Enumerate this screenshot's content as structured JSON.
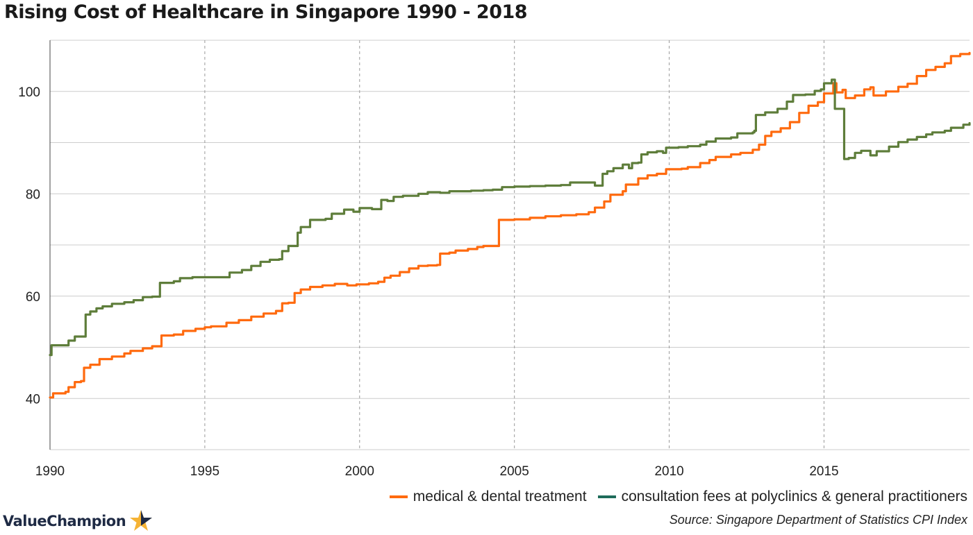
{
  "title": "Rising Cost of Healthcare in Singapore 1990 - 2018",
  "source": "Source: Singapore Department of Statistics CPI Index",
  "logo": {
    "text": "ValueChampion",
    "icon": "star-icon",
    "colors": [
      "#1e2a44",
      "#f5b335"
    ]
  },
  "colors": {
    "medical": "#ff6a0e",
    "consultation": "#5e7d3a",
    "legend_consultation": "#1e6b5a",
    "grid": "#cccccc"
  },
  "chart_data": {
    "type": "line",
    "title": "Rising Cost of Healthcare in Singapore 1990 - 2018",
    "xlabel": "",
    "ylabel": "",
    "xlim": [
      1990,
      2019.7
    ],
    "ylim": [
      30,
      110
    ],
    "x_ticks": [
      1990,
      1995,
      2000,
      2005,
      2010,
      2015
    ],
    "y_ticks": [
      40,
      60,
      80,
      100
    ],
    "grid": {
      "horizontal": true,
      "vertical_dashed_at_ticks": true
    },
    "legend_position": "bottom-right",
    "series": [
      {
        "name": "medical & dental treatment",
        "color": "#ff6a0e",
        "step": true,
        "points": [
          [
            1990.0,
            40.2
          ],
          [
            1990.1,
            41.0
          ],
          [
            1990.5,
            41.3
          ],
          [
            1990.6,
            42.2
          ],
          [
            1990.8,
            43.2
          ],
          [
            1991.0,
            43.4
          ],
          [
            1991.1,
            46.0
          ],
          [
            1991.3,
            46.6
          ],
          [
            1991.6,
            47.7
          ],
          [
            1992.0,
            48.2
          ],
          [
            1992.4,
            48.8
          ],
          [
            1992.6,
            49.3
          ],
          [
            1993.0,
            49.8
          ],
          [
            1993.3,
            50.2
          ],
          [
            1993.6,
            52.3
          ],
          [
            1994.0,
            52.5
          ],
          [
            1994.3,
            53.2
          ],
          [
            1994.7,
            53.6
          ],
          [
            1995.0,
            53.9
          ],
          [
            1995.2,
            54.1
          ],
          [
            1995.7,
            54.8
          ],
          [
            1996.1,
            55.3
          ],
          [
            1996.5,
            56.0
          ],
          [
            1996.9,
            56.6
          ],
          [
            1997.3,
            57.1
          ],
          [
            1997.5,
            58.6
          ],
          [
            1997.7,
            58.7
          ],
          [
            1997.9,
            60.6
          ],
          [
            1998.1,
            61.3
          ],
          [
            1998.4,
            61.8
          ],
          [
            1998.8,
            62.1
          ],
          [
            1999.2,
            62.4
          ],
          [
            1999.6,
            62.1
          ],
          [
            1999.9,
            62.3
          ],
          [
            2000.3,
            62.5
          ],
          [
            2000.6,
            62.8
          ],
          [
            2000.8,
            63.6
          ],
          [
            2001.0,
            64.0
          ],
          [
            2001.3,
            64.7
          ],
          [
            2001.6,
            65.4
          ],
          [
            2001.9,
            65.9
          ],
          [
            2002.2,
            66.0
          ],
          [
            2002.5,
            66.1
          ],
          [
            2002.6,
            68.3
          ],
          [
            2002.9,
            68.5
          ],
          [
            2003.1,
            68.9
          ],
          [
            2003.5,
            69.2
          ],
          [
            2003.8,
            69.6
          ],
          [
            2004.0,
            69.8
          ],
          [
            2004.4,
            69.8
          ],
          [
            2004.5,
            74.9
          ],
          [
            2005.0,
            75.0
          ],
          [
            2005.5,
            75.3
          ],
          [
            2006.0,
            75.6
          ],
          [
            2006.5,
            75.8
          ],
          [
            2007.0,
            76.0
          ],
          [
            2007.4,
            76.4
          ],
          [
            2007.6,
            77.3
          ],
          [
            2007.9,
            78.5
          ],
          [
            2008.1,
            79.8
          ],
          [
            2008.3,
            79.8
          ],
          [
            2008.5,
            80.5
          ],
          [
            2008.6,
            81.8
          ],
          [
            2009.0,
            83.0
          ],
          [
            2009.3,
            83.6
          ],
          [
            2009.6,
            83.9
          ],
          [
            2009.9,
            84.8
          ],
          [
            2010.4,
            84.9
          ],
          [
            2010.6,
            85.2
          ],
          [
            2011.0,
            86.0
          ],
          [
            2011.3,
            86.6
          ],
          [
            2011.5,
            87.2
          ],
          [
            2012.0,
            87.7
          ],
          [
            2012.3,
            88.0
          ],
          [
            2012.7,
            88.6
          ],
          [
            2012.9,
            89.6
          ],
          [
            2013.1,
            91.3
          ],
          [
            2013.3,
            92.1
          ],
          [
            2013.6,
            92.8
          ],
          [
            2013.9,
            94.0
          ],
          [
            2014.2,
            95.8
          ],
          [
            2014.5,
            97.2
          ],
          [
            2014.8,
            97.9
          ],
          [
            2015.0,
            99.6
          ],
          [
            2015.3,
            101.6
          ],
          [
            2015.4,
            99.8
          ],
          [
            2015.6,
            100.3
          ],
          [
            2015.7,
            98.7
          ],
          [
            2016.0,
            99.2
          ],
          [
            2016.3,
            100.4
          ],
          [
            2016.5,
            100.8
          ],
          [
            2016.6,
            99.2
          ],
          [
            2017.0,
            100.0
          ],
          [
            2017.4,
            100.9
          ],
          [
            2017.7,
            101.5
          ],
          [
            2018.0,
            103.0
          ],
          [
            2018.3,
            104.2
          ],
          [
            2018.6,
            104.8
          ],
          [
            2018.9,
            105.5
          ],
          [
            2019.1,
            106.9
          ],
          [
            2019.4,
            107.3
          ],
          [
            2019.7,
            107.5
          ]
        ]
      },
      {
        "name": "consultation fees at polyclinics & general practitioners",
        "color": "#5e7d3a",
        "step": true,
        "points": [
          [
            1990.0,
            48.5
          ],
          [
            1990.05,
            50.4
          ],
          [
            1990.5,
            50.4
          ],
          [
            1990.6,
            51.3
          ],
          [
            1990.8,
            52.1
          ],
          [
            1991.1,
            52.1
          ],
          [
            1991.15,
            56.4
          ],
          [
            1991.3,
            57.0
          ],
          [
            1991.5,
            57.6
          ],
          [
            1991.7,
            58.0
          ],
          [
            1992.0,
            58.5
          ],
          [
            1992.4,
            58.8
          ],
          [
            1992.7,
            59.2
          ],
          [
            1993.0,
            59.8
          ],
          [
            1993.3,
            59.9
          ],
          [
            1993.55,
            62.6
          ],
          [
            1994.0,
            62.9
          ],
          [
            1994.2,
            63.5
          ],
          [
            1994.6,
            63.7
          ],
          [
            1995.7,
            63.7
          ],
          [
            1995.8,
            64.6
          ],
          [
            1996.2,
            65.1
          ],
          [
            1996.5,
            65.9
          ],
          [
            1996.8,
            66.7
          ],
          [
            1997.1,
            67.1
          ],
          [
            1997.4,
            67.2
          ],
          [
            1997.5,
            68.8
          ],
          [
            1997.7,
            69.8
          ],
          [
            1997.9,
            69.8
          ],
          [
            1998.0,
            72.4
          ],
          [
            1998.1,
            73.5
          ],
          [
            1998.4,
            74.9
          ],
          [
            1998.9,
            75.1
          ],
          [
            1999.1,
            76.1
          ],
          [
            1999.5,
            76.9
          ],
          [
            1999.8,
            76.5
          ],
          [
            2000.0,
            77.2
          ],
          [
            2000.4,
            77.0
          ],
          [
            2000.6,
            77.0
          ],
          [
            2000.7,
            78.8
          ],
          [
            2000.9,
            78.6
          ],
          [
            2001.1,
            79.4
          ],
          [
            2001.4,
            79.6
          ],
          [
            2001.9,
            80.0
          ],
          [
            2002.2,
            80.3
          ],
          [
            2002.6,
            80.2
          ],
          [
            2002.9,
            80.5
          ],
          [
            2003.6,
            80.6
          ],
          [
            2004.0,
            80.7
          ],
          [
            2004.3,
            80.8
          ],
          [
            2004.6,
            81.3
          ],
          [
            2005.0,
            81.4
          ],
          [
            2005.5,
            81.5
          ],
          [
            2006.0,
            81.6
          ],
          [
            2006.5,
            81.7
          ],
          [
            2006.7,
            81.7
          ],
          [
            2006.8,
            82.2
          ],
          [
            2007.5,
            82.2
          ],
          [
            2007.6,
            81.6
          ],
          [
            2007.8,
            81.6
          ],
          [
            2007.85,
            83.9
          ],
          [
            2008.0,
            84.4
          ],
          [
            2008.2,
            85.0
          ],
          [
            2008.5,
            85.7
          ],
          [
            2008.7,
            85.0
          ],
          [
            2008.8,
            86.0
          ],
          [
            2009.0,
            86.1
          ],
          [
            2009.1,
            87.7
          ],
          [
            2009.3,
            88.1
          ],
          [
            2009.6,
            88.3
          ],
          [
            2009.8,
            88.0
          ],
          [
            2009.9,
            89.0
          ],
          [
            2010.3,
            89.1
          ],
          [
            2010.6,
            89.3
          ],
          [
            2011.0,
            89.6
          ],
          [
            2011.2,
            90.2
          ],
          [
            2011.5,
            90.8
          ],
          [
            2012.0,
            91.0
          ],
          [
            2012.2,
            91.8
          ],
          [
            2012.7,
            92.0
          ],
          [
            2012.75,
            92.3
          ],
          [
            2012.8,
            95.4
          ],
          [
            2013.1,
            95.9
          ],
          [
            2013.5,
            96.6
          ],
          [
            2013.8,
            98.0
          ],
          [
            2014.0,
            99.3
          ],
          [
            2014.4,
            99.4
          ],
          [
            2014.7,
            100.1
          ],
          [
            2014.9,
            100.4
          ],
          [
            2015.0,
            101.6
          ],
          [
            2015.25,
            102.3
          ],
          [
            2015.35,
            96.6
          ],
          [
            2015.6,
            96.6
          ],
          [
            2015.65,
            86.8
          ],
          [
            2015.8,
            87.0
          ],
          [
            2016.0,
            88.0
          ],
          [
            2016.2,
            88.4
          ],
          [
            2016.5,
            87.5
          ],
          [
            2016.7,
            88.3
          ],
          [
            2017.1,
            89.2
          ],
          [
            2017.4,
            90.1
          ],
          [
            2017.7,
            90.6
          ],
          [
            2018.0,
            91.1
          ],
          [
            2018.3,
            91.6
          ],
          [
            2018.5,
            92.0
          ],
          [
            2018.9,
            92.3
          ],
          [
            2019.1,
            92.9
          ],
          [
            2019.5,
            93.5
          ],
          [
            2019.7,
            93.8
          ]
        ]
      }
    ]
  },
  "legend": [
    {
      "label": "medical & dental treatment",
      "color": "#ff6a0e"
    },
    {
      "label": "consultation fees at polyclinics & general practitioners",
      "color": "#1e6b5a"
    }
  ]
}
